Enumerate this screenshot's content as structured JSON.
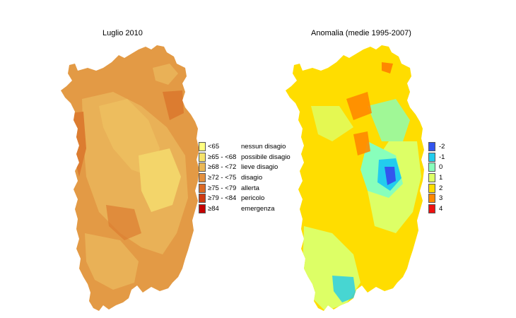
{
  "map1": {
    "title": "Luglio 2010",
    "legend": [
      {
        "label": "<65",
        "desc": "nessun disagio",
        "color": "#ffff80"
      },
      {
        "label": "≥65 - <68",
        "desc": "possibile disagio",
        "color": "#f6e36a"
      },
      {
        "label": "≥68 - <72",
        "desc": "lieve disagio",
        "color": "#eab855"
      },
      {
        "label": "≥72 - <75",
        "desc": "disagio",
        "color": "#e3903f"
      },
      {
        "label": "≥75 - <79",
        "desc": "allerta",
        "color": "#dc6a25"
      },
      {
        "label": "≥79 - <84",
        "desc": "pericolo",
        "color": "#cf3a12"
      },
      {
        "label": "≥84",
        "desc": "emergenza",
        "color": "#c40000"
      }
    ]
  },
  "map2": {
    "title": "Anomalia (medie 1995-2007)",
    "legend": [
      {
        "label": "-2",
        "color": "#3355ee"
      },
      {
        "label": "-1",
        "color": "#22ccee"
      },
      {
        "label": "0",
        "color": "#88ffbb"
      },
      {
        "label": "1",
        "color": "#ddff66"
      },
      {
        "label": "2",
        "color": "#ffdd00"
      },
      {
        "label": "3",
        "color": "#ff8800"
      },
      {
        "label": "4",
        "color": "#ee1111"
      }
    ]
  }
}
